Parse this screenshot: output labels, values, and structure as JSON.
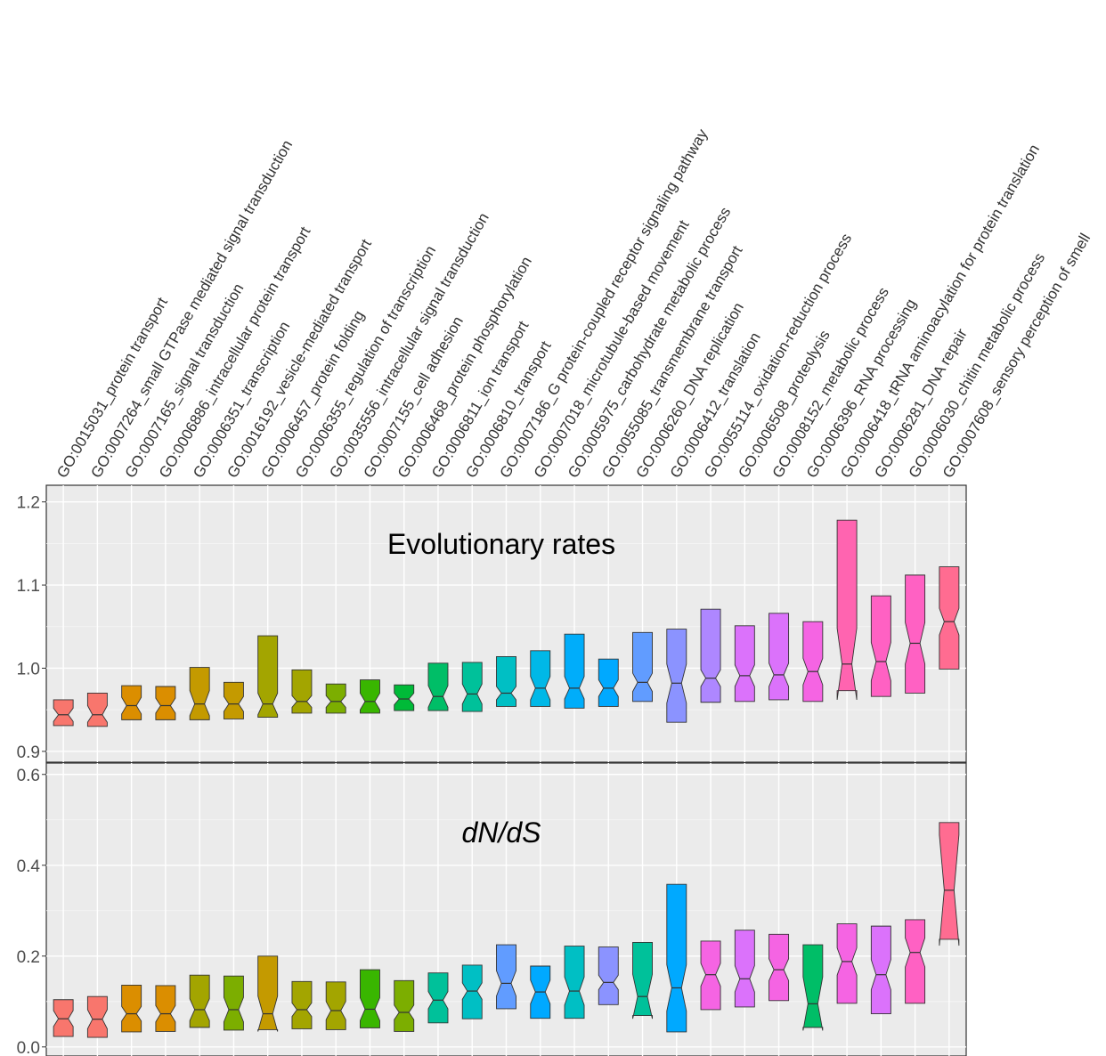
{
  "chart_data": {
    "type": "box",
    "categories": [
      "GO:0015031_protein transport",
      "GO:0007264_small GTPase mediated signal transduction",
      "GO:0007165_signal transduction",
      "GO:0006886_intracellular protein transport",
      "GO:0006351_transcription",
      "GO:0016192_vesicle-mediated transport",
      "GO:0006457_protein folding",
      "GO:0006355_regulation of transcription",
      "GO:0035556_intracellular signal transduction",
      "GO:0007155_cell adhesion",
      "GO:0006468_protein phosphorylation",
      "GO:0006811_ion transport",
      "GO:0006810_transport",
      "GO:0007186_G protein-coupled receptor signaling pathway",
      "GO:0007018_microtubule-based movement",
      "GO:0005975_carbohydrate metabolic process",
      "GO:0055085_transmembrane transport",
      "GO:0006260_DNA replication",
      "GO:0006412_translation",
      "GO:0055114_oxidation-reduction process",
      "GO:0006508_proteolysis",
      "GO:0008152_metabolic process",
      "GO:0006396_RNA processing",
      "GO:0006418_tRNA aminoacylation for protein translation",
      "GO:0006281_DNA repair",
      "GO:0006030_chitin metabolic process",
      "GO:0007608_sensory perception of smell"
    ],
    "panels": [
      {
        "title": "Evolutionary rates",
        "title_italic": false,
        "ylim": [
          0.887,
          1.22
        ],
        "yticks": [
          "0.9",
          "1.0",
          "1.1",
          "1.2"
        ],
        "ytick_values": [
          0.9,
          1.0,
          1.1,
          1.2
        ],
        "colors": [
          "#F8766D",
          "#F8766D",
          "#DB8E00",
          "#DB8E00",
          "#C49A00",
          "#C49A00",
          "#A3A500",
          "#A3A500",
          "#7CAE00",
          "#39B600",
          "#00BA38",
          "#00BE67",
          "#00C19A",
          "#00BFC4",
          "#00B8E7",
          "#00ADFA",
          "#00A9FF",
          "#619CFF",
          "#8B93FF",
          "#AE87FF",
          "#DB72FB",
          "#DB72FB",
          "#F564E3",
          "#FF64B0",
          "#FF61C3",
          "#FF61C3",
          "#FF6C91"
        ],
        "boxes": [
          {
            "q1": 0.931,
            "median": 0.944,
            "q3": 0.962,
            "notch_lo": 0.936,
            "notch_hi": 0.952
          },
          {
            "q1": 0.93,
            "median": 0.944,
            "q3": 0.97,
            "notch_lo": 0.935,
            "notch_hi": 0.955
          },
          {
            "q1": 0.938,
            "median": 0.955,
            "q3": 0.979,
            "notch_lo": 0.945,
            "notch_hi": 0.965
          },
          {
            "q1": 0.938,
            "median": 0.955,
            "q3": 0.978,
            "notch_lo": 0.946,
            "notch_hi": 0.964
          },
          {
            "q1": 0.938,
            "median": 0.957,
            "q3": 1.001,
            "notch_lo": 0.943,
            "notch_hi": 0.973
          },
          {
            "q1": 0.939,
            "median": 0.957,
            "q3": 0.983,
            "notch_lo": 0.948,
            "notch_hi": 0.966
          },
          {
            "q1": 0.941,
            "median": 0.957,
            "q3": 1.039,
            "notch_lo": 0.944,
            "notch_hi": 0.97
          },
          {
            "q1": 0.946,
            "median": 0.96,
            "q3": 0.998,
            "notch_lo": 0.953,
            "notch_hi": 0.967
          },
          {
            "q1": 0.946,
            "median": 0.96,
            "q3": 0.981,
            "notch_lo": 0.953,
            "notch_hi": 0.967
          },
          {
            "q1": 0.946,
            "median": 0.96,
            "q3": 0.986,
            "notch_lo": 0.95,
            "notch_hi": 0.97
          },
          {
            "q1": 0.949,
            "median": 0.963,
            "q3": 0.98,
            "notch_lo": 0.956,
            "notch_hi": 0.97
          },
          {
            "q1": 0.949,
            "median": 0.966,
            "q3": 1.006,
            "notch_lo": 0.953,
            "notch_hi": 0.979
          },
          {
            "q1": 0.948,
            "median": 0.969,
            "q3": 1.007,
            "notch_lo": 0.957,
            "notch_hi": 0.981
          },
          {
            "q1": 0.954,
            "median": 0.97,
            "q3": 1.014,
            "notch_lo": 0.962,
            "notch_hi": 0.978
          },
          {
            "q1": 0.954,
            "median": 0.976,
            "q3": 1.021,
            "notch_lo": 0.962,
            "notch_hi": 0.99
          },
          {
            "q1": 0.952,
            "median": 0.976,
            "q3": 1.041,
            "notch_lo": 0.963,
            "notch_hi": 0.99
          },
          {
            "q1": 0.954,
            "median": 0.976,
            "q3": 1.011,
            "notch_lo": 0.966,
            "notch_hi": 0.986
          },
          {
            "q1": 0.96,
            "median": 0.983,
            "q3": 1.043,
            "notch_lo": 0.972,
            "notch_hi": 0.994
          },
          {
            "q1": 0.935,
            "median": 0.982,
            "q3": 1.047,
            "notch_lo": 0.958,
            "notch_hi": 1.005
          },
          {
            "q1": 0.959,
            "median": 0.988,
            "q3": 1.071,
            "notch_lo": 0.978,
            "notch_hi": 0.998
          },
          {
            "q1": 0.96,
            "median": 0.991,
            "q3": 1.051,
            "notch_lo": 0.978,
            "notch_hi": 1.004
          },
          {
            "q1": 0.962,
            "median": 0.992,
            "q3": 1.066,
            "notch_lo": 0.978,
            "notch_hi": 1.006
          },
          {
            "q1": 0.96,
            "median": 0.996,
            "q3": 1.056,
            "notch_lo": 0.98,
            "notch_hi": 1.012
          },
          {
            "q1": 0.973,
            "median": 1.005,
            "q3": 1.178,
            "notch_lo": 0.962,
            "notch_hi": 1.048
          },
          {
            "q1": 0.966,
            "median": 1.008,
            "q3": 1.087,
            "notch_lo": 0.985,
            "notch_hi": 1.031
          },
          {
            "q1": 0.97,
            "median": 1.03,
            "q3": 1.112,
            "notch_lo": 1.005,
            "notch_hi": 1.055
          },
          {
            "q1": 0.999,
            "median": 1.056,
            "q3": 1.122,
            "notch_lo": 1.04,
            "notch_hi": 1.072
          }
        ]
      },
      {
        "title": "dN/dS",
        "title_italic": true,
        "ylim": [
          -0.02,
          0.625
        ],
        "yticks": [
          "0.0",
          "0.2",
          "0.4",
          "0.6"
        ],
        "ytick_values": [
          0.0,
          0.2,
          0.4,
          0.6
        ],
        "colors": [
          "#F8766D",
          "#F8766D",
          "#DB8E00",
          "#DB8E00",
          "#A3A500",
          "#7CAE00",
          "#C49A00",
          "#A3A500",
          "#A3A500",
          "#39B600",
          "#7CAE00",
          "#00C19A",
          "#00BFC4",
          "#619CFF",
          "#00A9FF",
          "#00BFC4",
          "#8B93FF",
          "#00C19A",
          "#00A9FF",
          "#F564E3",
          "#DB72FB",
          "#F564E3",
          "#00BE67",
          "#F564E3",
          "#DB72FB",
          "#FF61C3",
          "#FF6C91"
        ],
        "boxes": [
          {
            "q1": 0.023,
            "median": 0.062,
            "q3": 0.104,
            "notch_lo": 0.045,
            "notch_hi": 0.08
          },
          {
            "q1": 0.021,
            "median": 0.061,
            "q3": 0.111,
            "notch_lo": 0.04,
            "notch_hi": 0.082
          },
          {
            "q1": 0.033,
            "median": 0.073,
            "q3": 0.136,
            "notch_lo": 0.057,
            "notch_hi": 0.089
          },
          {
            "q1": 0.034,
            "median": 0.073,
            "q3": 0.135,
            "notch_lo": 0.055,
            "notch_hi": 0.091
          },
          {
            "q1": 0.043,
            "median": 0.082,
            "q3": 0.158,
            "notch_lo": 0.058,
            "notch_hi": 0.106
          },
          {
            "q1": 0.037,
            "median": 0.082,
            "q3": 0.156,
            "notch_lo": 0.055,
            "notch_hi": 0.109
          },
          {
            "q1": 0.038,
            "median": 0.073,
            "q3": 0.2,
            "notch_lo": 0.034,
            "notch_hi": 0.112
          },
          {
            "q1": 0.04,
            "median": 0.082,
            "q3": 0.144,
            "notch_lo": 0.067,
            "notch_hi": 0.097
          },
          {
            "q1": 0.038,
            "median": 0.08,
            "q3": 0.143,
            "notch_lo": 0.06,
            "notch_hi": 0.1
          },
          {
            "q1": 0.042,
            "median": 0.083,
            "q3": 0.17,
            "notch_lo": 0.058,
            "notch_hi": 0.108
          },
          {
            "q1": 0.034,
            "median": 0.076,
            "q3": 0.146,
            "notch_lo": 0.06,
            "notch_hi": 0.092
          },
          {
            "q1": 0.053,
            "median": 0.103,
            "q3": 0.163,
            "notch_lo": 0.084,
            "notch_hi": 0.122
          },
          {
            "q1": 0.062,
            "median": 0.123,
            "q3": 0.18,
            "notch_lo": 0.105,
            "notch_hi": 0.141
          },
          {
            "q1": 0.084,
            "median": 0.14,
            "q3": 0.225,
            "notch_lo": 0.112,
            "notch_hi": 0.168
          },
          {
            "q1": 0.063,
            "median": 0.121,
            "q3": 0.178,
            "notch_lo": 0.095,
            "notch_hi": 0.147
          },
          {
            "q1": 0.063,
            "median": 0.123,
            "q3": 0.222,
            "notch_lo": 0.092,
            "notch_hi": 0.154
          },
          {
            "q1": 0.093,
            "median": 0.142,
            "q3": 0.22,
            "notch_lo": 0.126,
            "notch_hi": 0.158
          },
          {
            "q1": 0.069,
            "median": 0.111,
            "q3": 0.23,
            "notch_lo": 0.062,
            "notch_hi": 0.16
          },
          {
            "q1": 0.033,
            "median": 0.13,
            "q3": 0.358,
            "notch_lo": 0.079,
            "notch_hi": 0.181
          },
          {
            "q1": 0.082,
            "median": 0.159,
            "q3": 0.233,
            "notch_lo": 0.134,
            "notch_hi": 0.184
          },
          {
            "q1": 0.088,
            "median": 0.15,
            "q3": 0.257,
            "notch_lo": 0.121,
            "notch_hi": 0.179
          },
          {
            "q1": 0.102,
            "median": 0.17,
            "q3": 0.248,
            "notch_lo": 0.146,
            "notch_hi": 0.194
          },
          {
            "q1": 0.043,
            "median": 0.095,
            "q3": 0.225,
            "notch_lo": 0.036,
            "notch_hi": 0.154
          },
          {
            "q1": 0.096,
            "median": 0.188,
            "q3": 0.271,
            "notch_lo": 0.158,
            "notch_hi": 0.218
          },
          {
            "q1": 0.073,
            "median": 0.159,
            "q3": 0.266,
            "notch_lo": 0.126,
            "notch_hi": 0.192
          },
          {
            "q1": 0.096,
            "median": 0.208,
            "q3": 0.28,
            "notch_lo": 0.176,
            "notch_hi": 0.24
          },
          {
            "q1": 0.237,
            "median": 0.345,
            "q3": 0.494,
            "notch_lo": 0.223,
            "notch_hi": 0.467
          }
        ]
      }
    ],
    "grid": true,
    "legend": "none"
  }
}
